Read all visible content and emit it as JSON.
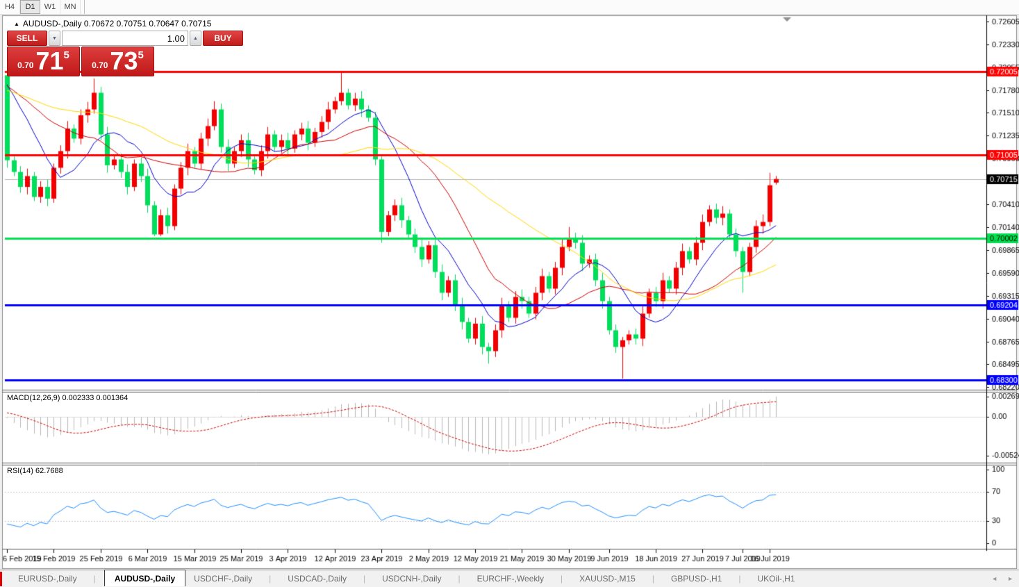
{
  "toolbar": {
    "buttons": [
      {
        "label": "H4",
        "active": false
      },
      {
        "label": "D1",
        "active": true
      },
      {
        "label": "W1",
        "active": false
      },
      {
        "label": "MN",
        "active": false
      }
    ]
  },
  "window": {
    "title": {
      "marker": "▲",
      "text": "AUDUSD-,Daily  0.70672 0.70751 0.70647 0.70715"
    },
    "trade_panel": {
      "sell_label": "SELL",
      "buy_label": "BUY",
      "volume": "1.00",
      "spin_down": "▼",
      "spin_up": "▲",
      "sell_price": {
        "small": "0.70",
        "big": "71",
        "sup": "5"
      },
      "buy_price": {
        "small": "0.70",
        "big": "73",
        "sup": "5"
      }
    }
  },
  "chart_data": {
    "type": "candlestick",
    "symbol": "AUDUSD-,Daily",
    "title": "AUDUSD-,Daily  0.70672 0.70751 0.70647 0.70715",
    "price_axis": {
      "min": 0.68187,
      "max": 0.72613,
      "ticks": [
        0.72605,
        0.7233,
        0.72055,
        0.7178,
        0.7151,
        0.71235,
        0.7096,
        0.7041,
        0.7014,
        0.69865,
        0.6959,
        0.69315,
        0.6904,
        0.68765,
        0.68495,
        0.6822
      ]
    },
    "current_price": 0.70715,
    "levels": [
      {
        "price": 0.72005,
        "color": "#ff0000",
        "text": "#ffffff",
        "width": 3
      },
      {
        "price": 0.71005,
        "color": "#ff0000",
        "text": "#ffffff",
        "width": 3
      },
      {
        "price": 0.70002,
        "color": "#00e050",
        "text": "#000000",
        "width": 3
      },
      {
        "price": 0.69204,
        "color": "#0000ff",
        "text": "#ffffff",
        "width": 3
      },
      {
        "price": 0.683,
        "color": "#0000ff",
        "text": "#ffffff",
        "width": 3
      }
    ],
    "candles": [
      [
        0.7196,
        0.71985,
        0.7085,
        0.7094
      ],
      [
        0.7094,
        0.7099,
        0.7075,
        0.708
      ],
      [
        0.708,
        0.7087,
        0.7055,
        0.7062
      ],
      [
        0.7062,
        0.7084,
        0.7053,
        0.7075
      ],
      [
        0.7075,
        0.708,
        0.7045,
        0.705
      ],
      [
        0.705,
        0.7069,
        0.7043,
        0.7062
      ],
      [
        0.7062,
        0.7071,
        0.7039,
        0.7048
      ],
      [
        0.7048,
        0.709,
        0.7043,
        0.7085
      ],
      [
        0.7085,
        0.7112,
        0.7078,
        0.7105
      ],
      [
        0.7105,
        0.7141,
        0.7096,
        0.7132
      ],
      [
        0.7132,
        0.7137,
        0.7115,
        0.712
      ],
      [
        0.712,
        0.7155,
        0.7113,
        0.7148
      ],
      [
        0.7148,
        0.7164,
        0.7139,
        0.7155
      ],
      [
        0.7155,
        0.7192,
        0.715,
        0.7175
      ],
      [
        0.7175,
        0.7182,
        0.7118,
        0.7125
      ],
      [
        0.7125,
        0.7134,
        0.7079,
        0.7088
      ],
      [
        0.7088,
        0.71,
        0.7083,
        0.7095
      ],
      [
        0.7095,
        0.7102,
        0.7073,
        0.708
      ],
      [
        0.708,
        0.7089,
        0.7053,
        0.7062
      ],
      [
        0.7062,
        0.7095,
        0.7057,
        0.709
      ],
      [
        0.709,
        0.7097,
        0.7068,
        0.7075
      ],
      [
        0.7075,
        0.7084,
        0.7031,
        0.704
      ],
      [
        0.704,
        0.7045,
        0.7003,
        0.7005
      ],
      [
        0.7005,
        0.7035,
        0.7003,
        0.7028
      ],
      [
        0.7028,
        0.7037,
        0.7006,
        0.7015
      ],
      [
        0.7015,
        0.7065,
        0.701,
        0.706
      ],
      [
        0.706,
        0.7092,
        0.7053,
        0.7085
      ],
      [
        0.7085,
        0.7114,
        0.7076,
        0.7105
      ],
      [
        0.7105,
        0.711,
        0.7085,
        0.709
      ],
      [
        0.709,
        0.7127,
        0.7083,
        0.712
      ],
      [
        0.712,
        0.7144,
        0.7111,
        0.7135
      ],
      [
        0.7135,
        0.7165,
        0.713,
        0.7155
      ],
      [
        0.7155,
        0.7162,
        0.7103,
        0.711
      ],
      [
        0.711,
        0.7119,
        0.7081,
        0.709
      ],
      [
        0.709,
        0.711,
        0.7085,
        0.7105
      ],
      [
        0.7105,
        0.7125,
        0.7098,
        0.7118
      ],
      [
        0.7118,
        0.7127,
        0.7086,
        0.7095
      ],
      [
        0.7095,
        0.71,
        0.7077,
        0.7082
      ],
      [
        0.7082,
        0.7112,
        0.7075,
        0.7105
      ],
      [
        0.7105,
        0.7134,
        0.7096,
        0.7125
      ],
      [
        0.7125,
        0.713,
        0.7105,
        0.711
      ],
      [
        0.711,
        0.7125,
        0.7103,
        0.7118
      ],
      [
        0.7118,
        0.7127,
        0.7099,
        0.7108
      ],
      [
        0.7108,
        0.713,
        0.7103,
        0.7125
      ],
      [
        0.7125,
        0.7139,
        0.7118,
        0.7132
      ],
      [
        0.7132,
        0.7141,
        0.7106,
        0.7115
      ],
      [
        0.7115,
        0.7133,
        0.711,
        0.7128
      ],
      [
        0.7128,
        0.7147,
        0.7121,
        0.714
      ],
      [
        0.714,
        0.7164,
        0.7131,
        0.7155
      ],
      [
        0.7155,
        0.717,
        0.715,
        0.7165
      ],
      [
        0.7165,
        0.7201,
        0.716,
        0.7175
      ],
      [
        0.7175,
        0.718,
        0.7155,
        0.716
      ],
      [
        0.716,
        0.7175,
        0.7153,
        0.7168
      ],
      [
        0.7168,
        0.7177,
        0.7146,
        0.7155
      ],
      [
        0.7155,
        0.716,
        0.714,
        0.7145
      ],
      [
        0.7145,
        0.7152,
        0.7088,
        0.7095
      ],
      [
        0.7095,
        0.71,
        0.6995,
        0.7008
      ],
      [
        0.7008,
        0.7033,
        0.7003,
        0.7028
      ],
      [
        0.7028,
        0.7047,
        0.7021,
        0.704
      ],
      [
        0.704,
        0.7049,
        0.7013,
        0.7022
      ],
      [
        0.7022,
        0.7027,
        0.7,
        0.7005
      ],
      [
        0.7005,
        0.7012,
        0.6983,
        0.699
      ],
      [
        0.699,
        0.6999,
        0.6966,
        0.6975
      ],
      [
        0.6975,
        0.6997,
        0.697,
        0.6992
      ],
      [
        0.6992,
        0.6999,
        0.6953,
        0.696
      ],
      [
        0.696,
        0.6969,
        0.6926,
        0.6935
      ],
      [
        0.6935,
        0.6955,
        0.693,
        0.695
      ],
      [
        0.695,
        0.6957,
        0.6913,
        0.692
      ],
      [
        0.692,
        0.6929,
        0.6891,
        0.69
      ],
      [
        0.69,
        0.6905,
        0.6875,
        0.688
      ],
      [
        0.688,
        0.6905,
        0.6873,
        0.6898
      ],
      [
        0.6898,
        0.6907,
        0.6861,
        0.687
      ],
      [
        0.687,
        0.6875,
        0.685,
        0.6865
      ],
      [
        0.6865,
        0.6897,
        0.6858,
        0.689
      ],
      [
        0.689,
        0.6929,
        0.6881,
        0.692
      ],
      [
        0.692,
        0.6925,
        0.69,
        0.6905
      ],
      [
        0.6905,
        0.6937,
        0.6898,
        0.693
      ],
      [
        0.693,
        0.6939,
        0.6916,
        0.6925
      ],
      [
        0.6925,
        0.693,
        0.6905,
        0.691
      ],
      [
        0.691,
        0.6942,
        0.6903,
        0.6935
      ],
      [
        0.6935,
        0.6964,
        0.6926,
        0.6955
      ],
      [
        0.6955,
        0.696,
        0.6935,
        0.694
      ],
      [
        0.694,
        0.6972,
        0.6933,
        0.6965
      ],
      [
        0.6965,
        0.6999,
        0.6956,
        0.699
      ],
      [
        0.699,
        0.7014,
        0.6985,
        0.7
      ],
      [
        0.7,
        0.7007,
        0.6988,
        0.6995
      ],
      [
        0.6995,
        0.7004,
        0.6961,
        0.697
      ],
      [
        0.697,
        0.698,
        0.6965,
        0.6975
      ],
      [
        0.6975,
        0.6982,
        0.6943,
        0.695
      ],
      [
        0.695,
        0.6959,
        0.6916,
        0.6925
      ],
      [
        0.6925,
        0.693,
        0.6885,
        0.689
      ],
      [
        0.689,
        0.6897,
        0.6863,
        0.687
      ],
      [
        0.687,
        0.6882,
        0.6832,
        0.6878
      ],
      [
        0.6878,
        0.689,
        0.6873,
        0.6885
      ],
      [
        0.6885,
        0.6892,
        0.6873,
        0.688
      ],
      [
        0.688,
        0.6919,
        0.6871,
        0.691
      ],
      [
        0.691,
        0.694,
        0.6905,
        0.6935
      ],
      [
        0.6935,
        0.6942,
        0.6918,
        0.6925
      ],
      [
        0.6925,
        0.6959,
        0.6916,
        0.695
      ],
      [
        0.695,
        0.6955,
        0.6935,
        0.694
      ],
      [
        0.694,
        0.6972,
        0.6933,
        0.6965
      ],
      [
        0.6965,
        0.6994,
        0.6956,
        0.6985
      ],
      [
        0.6985,
        0.699,
        0.697,
        0.6975
      ],
      [
        0.6975,
        0.7002,
        0.6968,
        0.6995
      ],
      [
        0.6995,
        0.7029,
        0.6986,
        0.702
      ],
      [
        0.702,
        0.704,
        0.7015,
        0.7035
      ],
      [
        0.7035,
        0.7042,
        0.7018,
        0.7025
      ],
      [
        0.7025,
        0.7039,
        0.7016,
        0.703
      ],
      [
        0.703,
        0.7035,
        0.7,
        0.7005
      ],
      [
        0.7005,
        0.7012,
        0.6978,
        0.6985
      ],
      [
        0.6985,
        0.699,
        0.6935,
        0.696
      ],
      [
        0.696,
        0.6995,
        0.6955,
        0.699
      ],
      [
        0.699,
        0.7022,
        0.6983,
        0.7015
      ],
      [
        0.7015,
        0.7029,
        0.7006,
        0.702
      ],
      [
        0.702,
        0.7079,
        0.7015,
        0.7064
      ],
      [
        0.70672,
        0.70751,
        0.70647,
        0.70715
      ]
    ],
    "date_ticks": [
      [
        0,
        "6 Feb 2019"
      ],
      [
        7,
        "15 Feb 2019"
      ],
      [
        14,
        "25 Feb 2019"
      ],
      [
        21,
        "6 Mar 2019"
      ],
      [
        28,
        "15 Mar 2019"
      ],
      [
        35,
        "25 Mar 2019"
      ],
      [
        42,
        "3 Apr 2019"
      ],
      [
        49,
        "12 Apr 2019"
      ],
      [
        56,
        "23 Apr 2019"
      ],
      [
        63,
        "2 May 2019"
      ],
      [
        70,
        "12 May 2019"
      ],
      [
        77,
        "21 May 2019"
      ],
      [
        84,
        "30 May 2019"
      ],
      [
        90,
        "9 Jun 2019"
      ],
      [
        97,
        "18 Jun 2019"
      ],
      [
        104,
        "27 Jun 2019"
      ],
      [
        110,
        "7 Jul 2019"
      ],
      [
        114,
        "16 Jul 2019"
      ]
    ],
    "ma": [
      {
        "window": 9,
        "color": "#0000c8"
      },
      {
        "window": 18,
        "color": "#cc0000"
      },
      {
        "window": 36,
        "color": "#ffd700"
      }
    ],
    "ma_seed": [
      0.7172,
      0.7172,
      0.7172,
      0.7172,
      0.7172,
      0.7172,
      0.7172,
      0.7172,
      0.7172,
      0.7172,
      0.7172,
      0.7172,
      0.7172,
      0.7172,
      0.7172,
      0.7172,
      0.7172,
      0.7172,
      0.718,
      0.718,
      0.718,
      0.718,
      0.718,
      0.718,
      0.718,
      0.718,
      0.718,
      0.7196,
      0.7196,
      0.7196,
      0.7196,
      0.7196,
      0.7196,
      0.7196,
      0.7196,
      0.7196
    ],
    "macd": {
      "label": "MACD(12,26,9) 0.002333 0.001364",
      "fast": 12,
      "slow": 26,
      "signal": 9,
      "axis_labels": [
        "0.002694",
        "0.00",
        "-0.005242"
      ],
      "hist_color": "#b8b8b8",
      "signal_color": "#cc0000"
    },
    "rsi": {
      "label": "RSI(14) 62.7688",
      "period": 14,
      "color": "#1e90ff",
      "dash_levels": [
        70,
        30
      ],
      "axis_ticks": [
        100,
        70,
        30,
        0
      ]
    },
    "colors": {
      "up": "#f20000",
      "down": "#00de5c",
      "current_line": "#b4b4b4",
      "current_badge_bg": "#000000",
      "current_badge_text": "#ffffff",
      "axis_text": "#000000",
      "panel_border": "#5a5a5a",
      "frame": "#8a8a8a",
      "zero_line": "#dcdcdc",
      "rsi_grid": "#c8c8c8"
    },
    "shift_marker": "▼"
  },
  "tabs": {
    "items": [
      {
        "label": "EURUSD-,Daily",
        "active": false
      },
      {
        "label": "AUDUSD-,Daily",
        "active": true
      },
      {
        "label": "USDCHF-,Daily",
        "active": false
      },
      {
        "label": "USDCAD-,Daily",
        "active": false
      },
      {
        "label": "USDCNH-,Daily",
        "active": false
      },
      {
        "label": "EURCHF-,Weekly",
        "active": false
      },
      {
        "label": "XAUUSD-,M15",
        "active": false
      },
      {
        "label": "GBPUSD-,H1",
        "active": false
      },
      {
        "label": "UKOil-,H1",
        "active": false
      }
    ],
    "scroll_left": "◄",
    "scroll_right": "►"
  }
}
